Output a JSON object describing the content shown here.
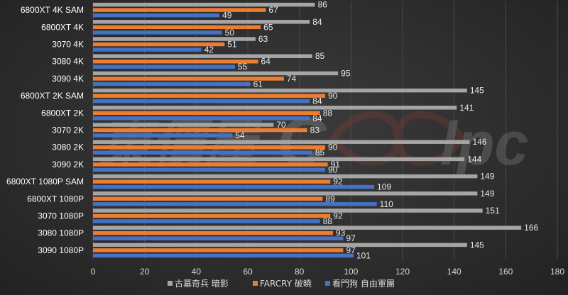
{
  "chart_data": {
    "type": "bar",
    "orientation": "horizontal",
    "categories": [
      "6800XT 4K SAM",
      "6800XT 4K",
      "3070 4K",
      "3080 4K",
      "3090 4K",
      "6800XT 2K SAM",
      "6800XT 2K",
      "3070 2K",
      "3080 2K",
      "3090 2K",
      "6800XT 1080P SAM",
      "6800XT 1080P",
      "3070 1080P",
      "3080 1080P",
      "3090 1080P"
    ],
    "series": [
      {
        "name": "古墓奇兵 暗影",
        "color": "#a5a5a5",
        "values": [
          86,
          84,
          63,
          85,
          95,
          145,
          141,
          70,
          146,
          144,
          149,
          149,
          151,
          166,
          145
        ]
      },
      {
        "name": "FARCRY 破曉",
        "color": "#ed7d31",
        "values": [
          67,
          65,
          51,
          64,
          74,
          90,
          88,
          83,
          90,
          91,
          92,
          89,
          92,
          93,
          97
        ]
      },
      {
        "name": "看門狗 自由軍團",
        "color": "#4472c4",
        "values": [
          49,
          50,
          42,
          55,
          61,
          84,
          84,
          54,
          85,
          90,
          109,
          110,
          88,
          97,
          101
        ]
      }
    ],
    "x_ticks": [
      "0",
      "20",
      "40",
      "60",
      "80",
      "100",
      "120",
      "140",
      "160",
      "180"
    ],
    "xlim": [
      0,
      180
    ],
    "grid": true,
    "legend_position": "bottom",
    "watermark": "電腦王阿達 Coolpc"
  }
}
